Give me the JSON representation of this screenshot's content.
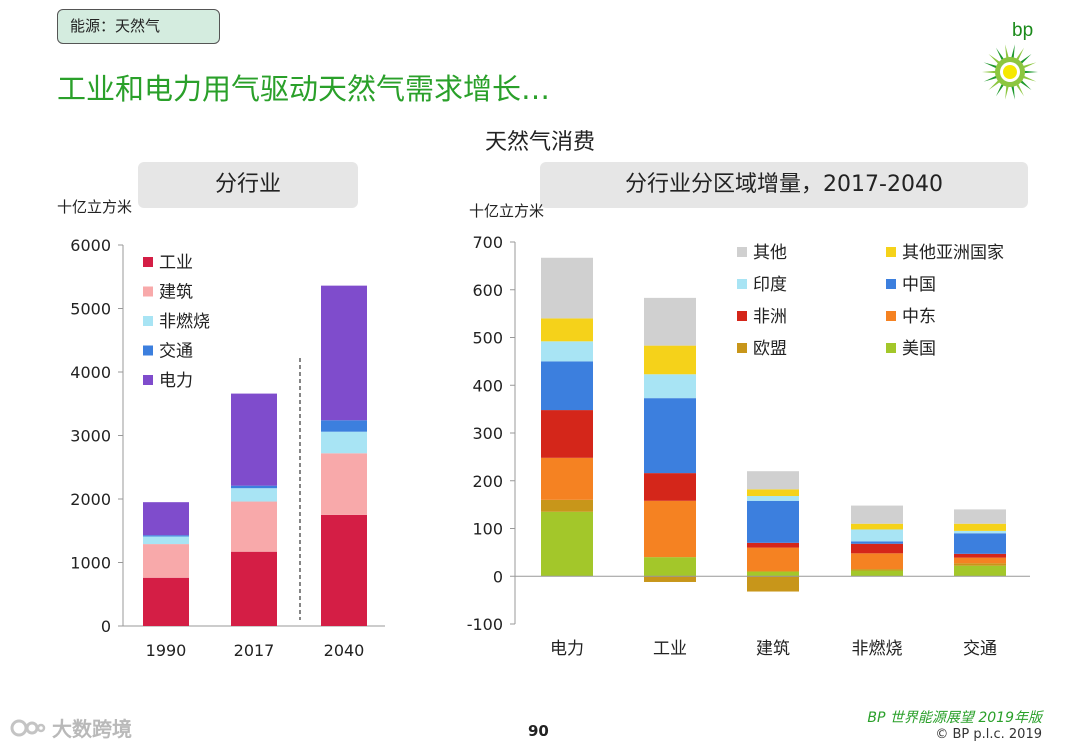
{
  "header": {
    "tag": "能源：天然气",
    "title": "工业和电力用气驱动天然气需求增长…",
    "subtitle": "天然气消费"
  },
  "brand": {
    "logo_text": "bp",
    "colors": {
      "green": "#2aa02a",
      "yellow": "#f5e800"
    }
  },
  "footer": {
    "page_number": "90",
    "source": "BP 世界能源展望 2019年版",
    "copyright": "© BP p.l.c. 2019",
    "watermark": "大数跨境"
  },
  "chart_data": [
    {
      "type": "bar",
      "stacked": true,
      "title": "分行业",
      "ylabel": "十亿立方米",
      "ylim": [
        0,
        6000
      ],
      "yticks": [
        0,
        1000,
        2000,
        3000,
        4000,
        5000,
        6000
      ],
      "categories": [
        "1990",
        "2017",
        "2040"
      ],
      "legend_position": "top-left",
      "series": [
        {
          "name": "工业",
          "color": "#d41e45",
          "values": [
            760,
            1170,
            1750
          ]
        },
        {
          "name": "建筑",
          "color": "#f8a9aa",
          "values": [
            530,
            790,
            970
          ]
        },
        {
          "name": "非燃烧",
          "color": "#a8e4f4",
          "values": [
            120,
            210,
            340
          ]
        },
        {
          "name": "交通",
          "color": "#3c7fde",
          "values": [
            20,
            40,
            180
          ]
        },
        {
          "name": "电力",
          "color": "#7f4ccc",
          "values": [
            520,
            1450,
            2120
          ]
        }
      ]
    },
    {
      "type": "bar",
      "stacked": true,
      "title": "分行业分区域增量，2017-2040",
      "ylabel": "十亿立方米",
      "ylim": [
        -100,
        700
      ],
      "yticks": [
        -100,
        0,
        100,
        200,
        300,
        400,
        500,
        600,
        700
      ],
      "categories": [
        "电力",
        "工业",
        "建筑",
        "非燃烧",
        "交通"
      ],
      "legend_position": "top-right",
      "series": [
        {
          "name": "美国",
          "color": "#a3c72a",
          "values": [
            135,
            40,
            10,
            12,
            22
          ]
        },
        {
          "name": "欧盟",
          "color": "#c8961a",
          "values": [
            25,
            -12,
            -32,
            3,
            5
          ]
        },
        {
          "name": "中东",
          "color": "#f58222",
          "values": [
            88,
            118,
            50,
            33,
            12
          ]
        },
        {
          "name": "非洲",
          "color": "#d4261a",
          "values": [
            100,
            58,
            10,
            20,
            8
          ]
        },
        {
          "name": "中国",
          "color": "#3c7fde",
          "values": [
            102,
            157,
            88,
            5,
            43
          ]
        },
        {
          "name": "印度",
          "color": "#a8e4f4",
          "values": [
            42,
            50,
            10,
            25,
            5
          ]
        },
        {
          "name": "其他亚洲国家",
          "color": "#f5d21a",
          "values": [
            48,
            60,
            14,
            12,
            15
          ]
        },
        {
          "name": "其他",
          "color": "#d0d0d0",
          "values": [
            127,
            100,
            38,
            38,
            30
          ]
        }
      ]
    }
  ]
}
